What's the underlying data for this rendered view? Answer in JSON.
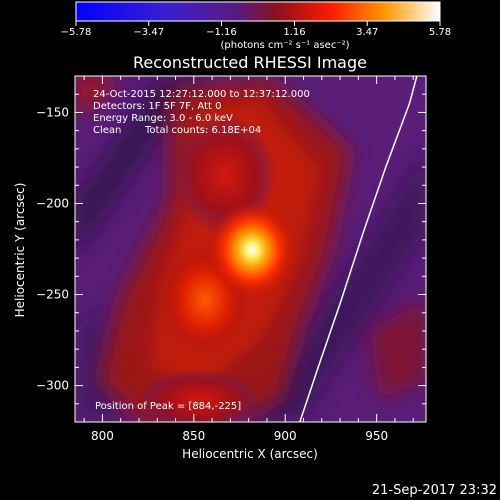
{
  "chart_data": {
    "type": "heatmap",
    "title": "Reconstructed RHESSI Image",
    "xlabel": "Heliocentric X (arcsec)",
    "ylabel": "Heliocentric Y (arcsec)",
    "xlim": [
      785,
      977
    ],
    "ylim": [
      -320,
      -130
    ],
    "x_ticks": [
      800,
      850,
      900,
      950
    ],
    "y_ticks": [
      -150,
      -200,
      -250,
      -300
    ],
    "x_tick_labels": [
      "800",
      "850",
      "900",
      "950"
    ],
    "y_tick_labels": [
      "−150",
      "−200",
      "−250",
      "−300"
    ],
    "colorbar": {
      "min": -5.78,
      "max": 5.78,
      "ticks": [
        -5.78,
        -3.47,
        -1.16,
        1.16,
        3.47,
        5.78
      ],
      "tick_labels": [
        "−5.78",
        "−3.47",
        "−1.16",
        "1.16",
        "3.47",
        "5.78"
      ],
      "unit_label": "(photons cm⁻² s⁻¹ asec⁻²)"
    },
    "annotations": [
      "24-Oct-2015 12:27:12.000 to 12:37:12.000",
      "Detectors: 1F 5F 7F, Att 0",
      "Energy Range: 3.0 - 6.0 keV",
      "Clean",
      "Total counts: 6.18E+04",
      "Position of Peak = [884,-225]"
    ],
    "peak": {
      "x": 884,
      "y": -225
    },
    "limb_curve": [
      [
        908,
        -320
      ],
      [
        918,
        -290
      ],
      [
        930,
        -255
      ],
      [
        943,
        -215
      ],
      [
        955,
        -180
      ],
      [
        968,
        -145
      ],
      [
        972,
        -130
      ]
    ],
    "timestamp": "21-Sep-2017 23:32"
  }
}
